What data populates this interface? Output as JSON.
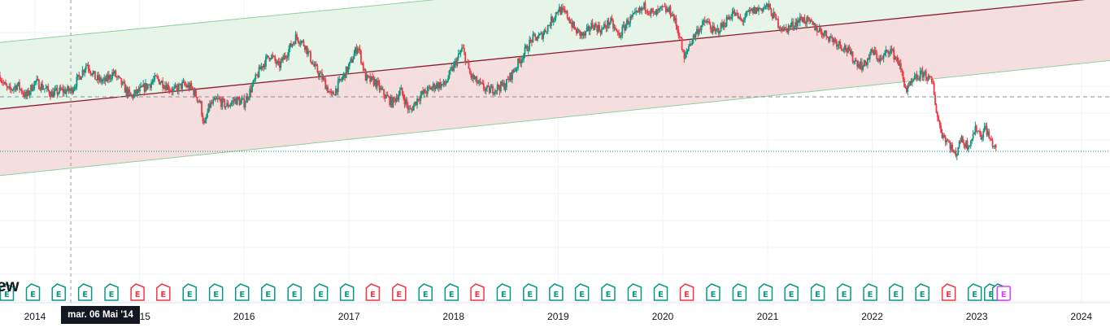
{
  "chart_data": {
    "type": "candlestick",
    "x_axis": {
      "range": [
        "2013-09-01",
        "2024-04-10"
      ],
      "tick_labels": [
        "2014",
        "2015",
        "2016",
        "2017",
        "2018",
        "2019",
        "2020",
        "2021",
        "2022",
        "2023",
        "2024"
      ]
    },
    "y_axis": {
      "ylim": [
        0,
        100
      ],
      "labels_visible": false
    },
    "grid": true,
    "series": [
      {
        "values": [
          [
            "2013-09-01",
            75
          ],
          [
            "2013-09-15",
            72
          ],
          [
            "2013-10-01",
            70
          ],
          [
            "2013-11-01",
            72
          ],
          [
            "2013-12-01",
            68
          ],
          [
            "2014-01-01",
            73
          ],
          [
            "2014-02-01",
            71
          ],
          [
            "2014-03-01",
            69
          ],
          [
            "2014-04-01",
            70
          ],
          [
            "2014-05-06",
            70
          ],
          [
            "2014-06-01",
            74
          ],
          [
            "2014-07-01",
            79
          ],
          [
            "2014-08-01",
            74
          ],
          [
            "2014-09-01",
            73
          ],
          [
            "2014-10-01",
            76
          ],
          [
            "2014-11-01",
            72
          ],
          [
            "2014-12-01",
            68
          ],
          [
            "2015-01-01",
            70
          ],
          [
            "2015-02-01",
            72
          ],
          [
            "2015-03-01",
            74
          ],
          [
            "2015-04-01",
            72
          ],
          [
            "2015-05-01",
            70
          ],
          [
            "2015-06-01",
            72
          ],
          [
            "2015-07-01",
            71
          ],
          [
            "2015-08-01",
            66
          ],
          [
            "2015-08-15",
            58
          ],
          [
            "2015-09-01",
            65
          ],
          [
            "2015-10-01",
            67
          ],
          [
            "2015-11-01",
            65
          ],
          [
            "2015-12-01",
            67
          ],
          [
            "2016-01-01",
            66
          ],
          [
            "2016-02-01",
            72
          ],
          [
            "2016-03-01",
            78
          ],
          [
            "2016-04-01",
            82
          ],
          [
            "2016-05-01",
            78
          ],
          [
            "2016-06-01",
            83
          ],
          [
            "2016-07-01",
            88
          ],
          [
            "2016-08-01",
            85
          ],
          [
            "2016-09-01",
            78
          ],
          [
            "2016-10-01",
            74
          ],
          [
            "2016-11-01",
            68
          ],
          [
            "2016-12-01",
            73
          ],
          [
            "2017-01-01",
            78
          ],
          [
            "2017-02-01",
            85
          ],
          [
            "2017-03-01",
            74
          ],
          [
            "2017-04-01",
            73
          ],
          [
            "2017-05-01",
            69
          ],
          [
            "2017-06-01",
            66
          ],
          [
            "2017-07-01",
            70
          ],
          [
            "2017-08-01",
            63
          ],
          [
            "2017-09-01",
            68
          ],
          [
            "2017-10-01",
            70
          ],
          [
            "2017-11-01",
            72
          ],
          [
            "2017-12-01",
            72
          ],
          [
            "2018-01-01",
            78
          ],
          [
            "2018-02-01",
            84
          ],
          [
            "2018-03-01",
            75
          ],
          [
            "2018-04-01",
            72
          ],
          [
            "2018-05-01",
            70
          ],
          [
            "2018-06-01",
            71
          ],
          [
            "2018-07-01",
            72
          ],
          [
            "2018-08-01",
            77
          ],
          [
            "2018-09-01",
            82
          ],
          [
            "2018-10-01",
            87
          ],
          [
            "2018-11-01",
            88
          ],
          [
            "2018-12-01",
            92
          ],
          [
            "2019-01-01",
            97
          ],
          [
            "2019-02-01",
            95
          ],
          [
            "2019-03-01",
            90
          ],
          [
            "2019-04-01",
            88
          ],
          [
            "2019-05-01",
            92
          ],
          [
            "2019-06-01",
            90
          ],
          [
            "2019-07-01",
            93
          ],
          [
            "2019-08-01",
            88
          ],
          [
            "2019-09-01",
            93
          ],
          [
            "2019-10-01",
            95
          ],
          [
            "2019-11-01",
            98
          ],
          [
            "2019-12-01",
            95
          ],
          [
            "2020-01-01",
            97
          ],
          [
            "2020-02-01",
            96
          ],
          [
            "2020-03-01",
            88
          ],
          [
            "2020-03-15",
            80
          ],
          [
            "2020-04-01",
            85
          ],
          [
            "2020-05-01",
            90
          ],
          [
            "2020-06-01",
            93
          ],
          [
            "2020-07-01",
            89
          ],
          [
            "2020-08-01",
            92
          ],
          [
            "2020-09-01",
            96
          ],
          [
            "2020-10-01",
            93
          ],
          [
            "2020-11-01",
            96
          ],
          [
            "2021-01-01",
            98
          ],
          [
            "2021-02-01",
            93
          ],
          [
            "2021-03-01",
            90
          ],
          [
            "2021-04-01",
            92
          ],
          [
            "2021-05-01",
            94
          ],
          [
            "2021-06-01",
            92
          ],
          [
            "2021-07-01",
            90
          ],
          [
            "2021-08-01",
            88
          ],
          [
            "2021-09-01",
            86
          ],
          [
            "2021-10-01",
            84
          ],
          [
            "2021-11-01",
            80
          ],
          [
            "2021-12-01",
            78
          ],
          [
            "2022-01-01",
            83
          ],
          [
            "2022-02-01",
            80
          ],
          [
            "2022-03-01",
            84
          ],
          [
            "2022-04-01",
            80
          ],
          [
            "2022-05-01",
            70
          ],
          [
            "2022-06-01",
            74
          ],
          [
            "2022-07-01",
            76
          ],
          [
            "2022-08-01",
            72
          ],
          [
            "2022-08-15",
            62
          ],
          [
            "2022-09-01",
            56
          ],
          [
            "2022-10-01",
            52
          ],
          [
            "2022-10-20",
            48
          ],
          [
            "2022-11-01",
            54
          ],
          [
            "2022-12-01",
            52
          ],
          [
            "2023-01-01",
            58
          ],
          [
            "2023-01-15",
            55
          ],
          [
            "2023-02-01",
            58
          ],
          [
            "2023-02-15",
            54
          ],
          [
            "2023-03-01",
            52
          ],
          [
            "2023-03-10",
            50
          ]
        ]
      }
    ],
    "overlays": {
      "channel_upper": [
        [
          "2013-09-01",
          86
        ],
        [
          "2024-04-10",
          122
        ]
      ],
      "channel_middle": [
        [
          "2013-09-01",
          64
        ],
        [
          "2024-04-10",
          101
        ]
      ],
      "channel_lower": [
        [
          "2013-09-01",
          42
        ],
        [
          "2024-04-10",
          80
        ]
      ],
      "horizontal_dashed": 68,
      "horizontal_dotted": 50
    },
    "crosshair": {
      "date": "2014-05-06",
      "label": "mar. 06 Mai '14"
    },
    "earnings_markers": [
      {
        "date": "2013-09-25",
        "type": "past"
      },
      {
        "date": "2013-12-25",
        "type": "past"
      },
      {
        "date": "2014-03-25",
        "type": "past"
      },
      {
        "date": "2014-06-25",
        "type": "past"
      },
      {
        "date": "2014-09-25",
        "type": "past"
      },
      {
        "date": "2014-12-25",
        "type": "miss"
      },
      {
        "date": "2015-03-25",
        "type": "miss"
      },
      {
        "date": "2015-06-25",
        "type": "past"
      },
      {
        "date": "2015-09-25",
        "type": "past"
      },
      {
        "date": "2015-12-25",
        "type": "past"
      },
      {
        "date": "2016-03-25",
        "type": "past"
      },
      {
        "date": "2016-06-25",
        "type": "past"
      },
      {
        "date": "2016-09-25",
        "type": "past"
      },
      {
        "date": "2016-12-25",
        "type": "past"
      },
      {
        "date": "2017-03-25",
        "type": "miss"
      },
      {
        "date": "2017-06-25",
        "type": "miss"
      },
      {
        "date": "2017-09-25",
        "type": "past"
      },
      {
        "date": "2017-12-25",
        "type": "past"
      },
      {
        "date": "2018-03-25",
        "type": "miss"
      },
      {
        "date": "2018-06-25",
        "type": "past"
      },
      {
        "date": "2018-09-25",
        "type": "past"
      },
      {
        "date": "2018-12-25",
        "type": "past"
      },
      {
        "date": "2019-03-25",
        "type": "past"
      },
      {
        "date": "2019-06-25",
        "type": "past"
      },
      {
        "date": "2019-09-25",
        "type": "past"
      },
      {
        "date": "2019-12-25",
        "type": "past"
      },
      {
        "date": "2020-03-25",
        "type": "miss"
      },
      {
        "date": "2020-06-25",
        "type": "past"
      },
      {
        "date": "2020-09-25",
        "type": "past"
      },
      {
        "date": "2020-12-25",
        "type": "past"
      },
      {
        "date": "2021-03-25",
        "type": "past"
      },
      {
        "date": "2021-06-25",
        "type": "past"
      },
      {
        "date": "2021-09-25",
        "type": "past"
      },
      {
        "date": "2021-12-25",
        "type": "past"
      },
      {
        "date": "2022-03-25",
        "type": "past"
      },
      {
        "date": "2022-06-25",
        "type": "past"
      },
      {
        "date": "2022-09-25",
        "type": "miss"
      },
      {
        "date": "2022-12-25",
        "type": "past"
      },
      {
        "date": "2023-02-20",
        "type": "past"
      },
      {
        "date": "2023-03-20",
        "type": "past"
      },
      {
        "date": "2023-04-05",
        "type": "upcoming"
      }
    ],
    "earnings_letter": "E",
    "colors": {
      "up": "#089981",
      "down": "#f23645",
      "channel_fill_top": "#e7f5e9",
      "channel_fill_bottom": "#f5dede",
      "channel_edge": "#8fd19a",
      "channel_mid": "#8c1c2a",
      "dashed": "#8a8e9a",
      "dotted": "#089981",
      "earn_past": "#089981",
      "earn_miss": "#f23645",
      "earn_upcoming": "#e040fb",
      "grid": "#f0f3fa"
    }
  },
  "brand": "ew",
  "crosshair_label": "mar. 06 Mai '14"
}
